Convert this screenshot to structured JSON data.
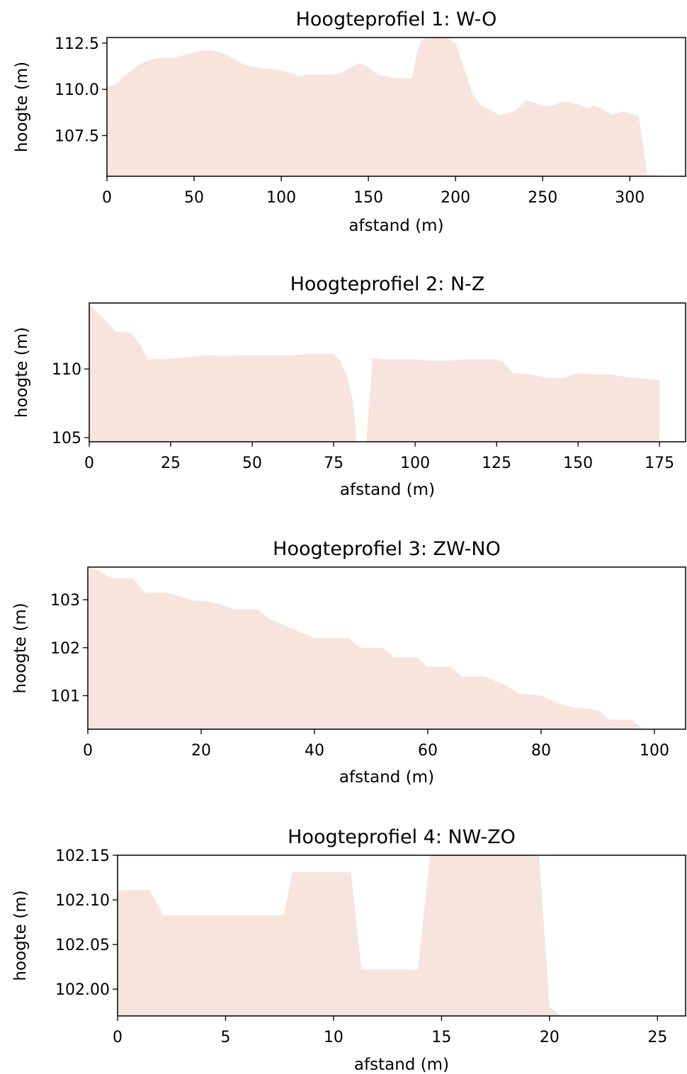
{
  "chart_data": [
    {
      "type": "area",
      "title": "Hoogteprofiel 1: W-O",
      "xlabel": "afstand (m)",
      "ylabel": "hoogte (m)",
      "xlim": [
        0,
        332
      ],
      "ylim": [
        105.3,
        112.8
      ],
      "xticks": [
        0,
        50,
        100,
        150,
        200,
        250,
        300
      ],
      "yticks": [
        107.5,
        110.0,
        112.5
      ],
      "xticklabels": [
        "0",
        "50",
        "100",
        "150",
        "200",
        "250",
        "300"
      ],
      "yticklabels": [
        "107.5",
        "110.0",
        "112.5"
      ],
      "color": "#f6e4dd",
      "x": [
        0,
        5,
        10,
        15,
        20,
        25,
        30,
        35,
        40,
        45,
        50,
        55,
        60,
        65,
        70,
        75,
        80,
        85,
        90,
        95,
        100,
        105,
        110,
        115,
        120,
        125,
        130,
        135,
        140,
        145,
        150,
        155,
        160,
        165,
        170,
        175,
        178,
        180,
        185,
        190,
        195,
        200,
        205,
        210,
        215,
        220,
        225,
        230,
        235,
        240,
        245,
        250,
        255,
        260,
        265,
        270,
        275,
        280,
        285,
        290,
        295,
        300,
        305,
        310,
        320,
        332
      ],
      "y": [
        110.1,
        110.3,
        110.7,
        111.1,
        111.4,
        111.6,
        111.7,
        111.7,
        111.7,
        111.9,
        112.0,
        112.1,
        112.1,
        112.0,
        111.8,
        111.5,
        111.3,
        111.2,
        111.1,
        111.1,
        111.0,
        110.9,
        110.7,
        110.8,
        110.8,
        110.8,
        110.8,
        110.9,
        111.2,
        111.4,
        111.2,
        110.8,
        110.7,
        110.6,
        110.6,
        110.6,
        112.0,
        112.6,
        112.9,
        112.9,
        112.8,
        112.5,
        111.1,
        109.7,
        109.1,
        108.9,
        108.6,
        108.7,
        108.9,
        109.4,
        109.3,
        109.1,
        109.1,
        109.3,
        109.3,
        109.2,
        109.0,
        109.1,
        108.9,
        108.6,
        108.8,
        108.7,
        108.6,
        105.4,
        105.3,
        105.3
      ]
    },
    {
      "type": "area",
      "title": "Hoogteprofiel 2: N-Z",
      "xlabel": "afstand (m)",
      "ylabel": "hoogte (m)",
      "xlim": [
        0,
        183
      ],
      "ylim": [
        104.7,
        114.8
      ],
      "xticks": [
        0,
        25,
        50,
        75,
        100,
        125,
        150,
        175
      ],
      "yticks": [
        105,
        110
      ],
      "xticklabels": [
        "0",
        "25",
        "50",
        "75",
        "100",
        "125",
        "150",
        "175"
      ],
      "yticklabels": [
        "105",
        "110"
      ],
      "color": "#f6e4dd",
      "x": [
        0,
        3,
        6,
        8,
        10,
        13,
        16,
        18,
        22,
        27,
        32,
        37,
        42,
        47,
        52,
        57,
        62,
        67,
        72,
        75,
        77,
        79,
        81,
        82,
        84,
        85,
        87,
        90,
        95,
        100,
        105,
        110,
        115,
        120,
        125,
        127,
        130,
        135,
        140,
        145,
        150,
        155,
        160,
        165,
        170,
        175
      ],
      "y": [
        114.7,
        114.0,
        113.3,
        112.7,
        112.7,
        112.6,
        111.6,
        110.7,
        110.7,
        110.8,
        110.9,
        111.0,
        110.9,
        111.0,
        111.0,
        111.0,
        111.0,
        111.1,
        111.1,
        111.1,
        110.6,
        109.6,
        107.5,
        104.7,
        104.7,
        104.7,
        110.8,
        110.7,
        110.7,
        110.7,
        110.6,
        110.6,
        110.7,
        110.7,
        110.7,
        110.5,
        109.7,
        109.6,
        109.4,
        109.3,
        109.7,
        109.6,
        109.6,
        109.4,
        109.3,
        109.2
      ]
    },
    {
      "type": "area",
      "title": "Hoogteprofiel 3: ZW-NO",
      "xlabel": "afstand (m)",
      "ylabel": "hoogte (m)",
      "xlim": [
        0,
        105.5
      ],
      "ylim": [
        100.3,
        103.68
      ],
      "xticks": [
        0,
        20,
        40,
        60,
        80,
        100
      ],
      "yticks": [
        101,
        102,
        103
      ],
      "xticklabels": [
        "0",
        "20",
        "40",
        "60",
        "80",
        "100"
      ],
      "yticklabels": [
        "101",
        "102",
        "103"
      ],
      "color": "#f6e4dd",
      "x": [
        0,
        2,
        4,
        8,
        10,
        14,
        18,
        22,
        26,
        30,
        32,
        36,
        40,
        46,
        48,
        52,
        54,
        58,
        60,
        64,
        66,
        70,
        74,
        76,
        80,
        84,
        86,
        90,
        92,
        96,
        98,
        100
      ],
      "y": [
        103.68,
        103.6,
        103.45,
        103.45,
        103.15,
        103.15,
        103.0,
        102.95,
        102.8,
        102.8,
        102.6,
        102.4,
        102.2,
        102.2,
        102.0,
        102.0,
        101.8,
        101.8,
        101.6,
        101.6,
        101.4,
        101.4,
        101.2,
        101.05,
        101.0,
        100.8,
        100.75,
        100.7,
        100.5,
        100.5,
        100.3,
        100.3
      ]
    },
    {
      "type": "area",
      "title": "Hoogteprofiel 4: NW-ZO",
      "xlabel": "afstand (m)",
      "ylabel": "hoogte (m)",
      "xlim": [
        0,
        26.3
      ],
      "ylim": [
        101.97,
        102.15
      ],
      "xticks": [
        0,
        5,
        10,
        15,
        20,
        25
      ],
      "yticks": [
        102.0,
        102.05,
        102.1,
        102.15
      ],
      "xticklabels": [
        "0",
        "5",
        "10",
        "15",
        "20",
        "25"
      ],
      "yticklabels": [
        "102.00",
        "102.05",
        "102.10",
        "102.15"
      ],
      "color": "#f6e4dd",
      "x": [
        0,
        1.5,
        2.1,
        7.7,
        8.1,
        10.8,
        11.3,
        13.9,
        14.5,
        19.5,
        20.0,
        20.5,
        21.0
      ],
      "y": [
        102.111,
        102.111,
        102.083,
        102.083,
        102.131,
        102.131,
        102.022,
        102.022,
        102.155,
        102.155,
        101.98,
        101.971,
        101.97
      ]
    }
  ]
}
